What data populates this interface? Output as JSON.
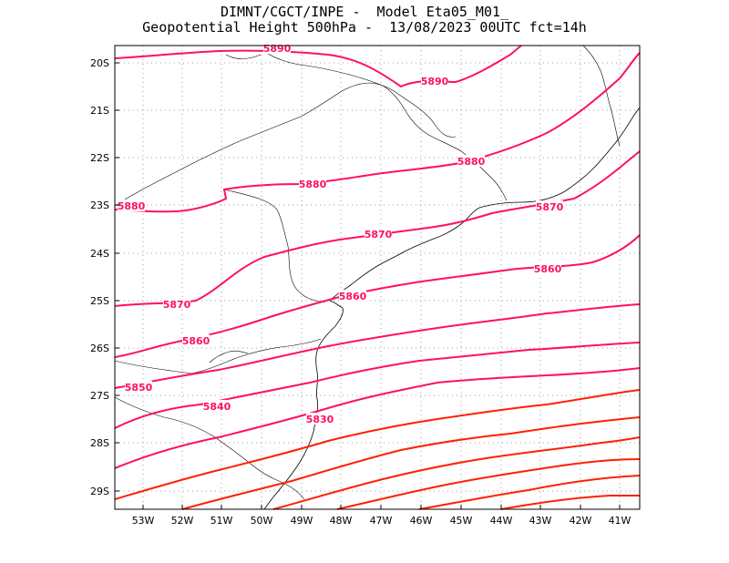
{
  "title": {
    "line1": "DIMNT/CGCT/INPE -  Model Eta05_M01_",
    "line2": "Geopotential Height 500hPa -  13/08/2023 00UTC fct=14h"
  },
  "map": {
    "lon_labels": [
      "53W",
      "52W",
      "51W",
      "50W",
      "49W",
      "48W",
      "47W",
      "46W",
      "45W",
      "44W",
      "43W",
      "42W",
      "41W"
    ],
    "lat_labels": [
      "20S",
      "21S",
      "22S",
      "23S",
      "24S",
      "25S",
      "26S",
      "27S",
      "28S",
      "29S"
    ],
    "lon_range": [
      -53.6,
      -40.5
    ],
    "lat_range": [
      -29.4,
      -19.6
    ],
    "variable": "Geopotential Height 500hPa",
    "contour_labels": [
      "5890",
      "5890",
      "5880",
      "5880",
      "5880",
      "5870",
      "5870",
      "5870",
      "5860",
      "5860",
      "5860",
      "5850",
      "5840",
      "5830"
    ],
    "colors": {
      "high": "#ff1060",
      "low": "#ff2000",
      "coast": "#000000",
      "grid": "#a0a0a0"
    }
  }
}
